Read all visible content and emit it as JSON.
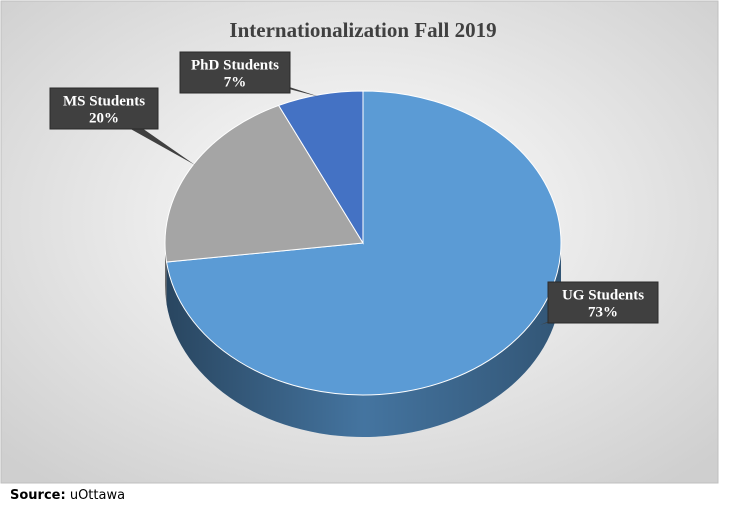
{
  "chart_data": {
    "type": "pie",
    "title": "Internationalization Fall 2019",
    "categories": [
      "UG Students",
      "MS Students",
      "PhD Students"
    ],
    "values": [
      73,
      20,
      7
    ],
    "value_labels": [
      "73%",
      "20%",
      "7%"
    ],
    "colors": [
      "#5b9bd5",
      "#a5a5a5",
      "#4472c4"
    ]
  },
  "source": {
    "label": "Source:",
    "text": "uOttawa"
  }
}
